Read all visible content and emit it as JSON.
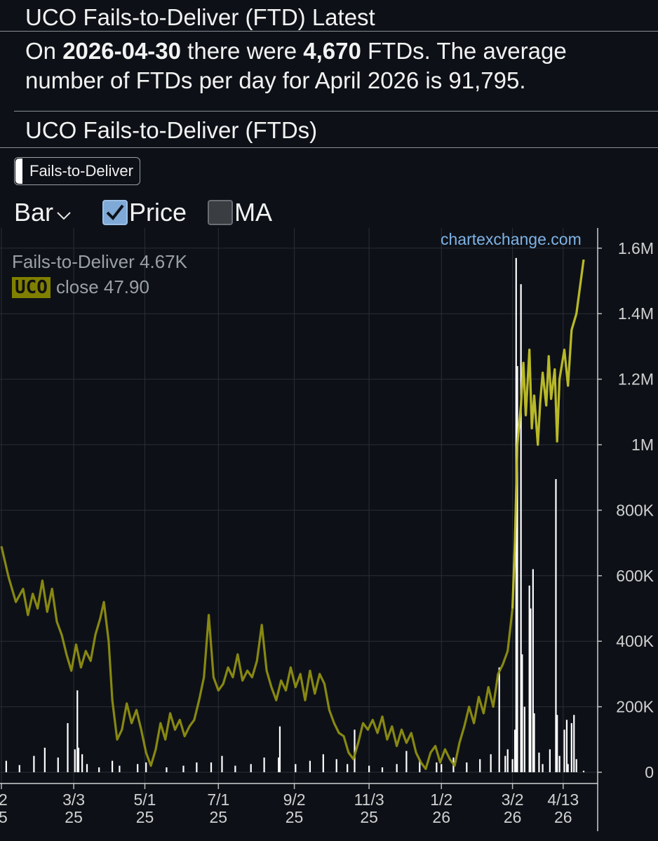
{
  "header": {
    "title": "UCO Fails-to-Deliver (FTD) Latest",
    "summary_prefix": "On ",
    "latest_date": "2026-04-30",
    "summary_mid": " there were ",
    "latest_ftd": "4,670",
    "summary_suffix": " FTDs. The average number of FTDs per day for April 2026 is 91,795.",
    "chart_title": "UCO Fails-to-Deliver (FTDs)"
  },
  "controls": {
    "series_toggle_label": "Fails-to-Deliver",
    "chart_type_label": "Bar",
    "price_label": "Price",
    "price_checked": true,
    "ma_label": "MA",
    "ma_checked": false
  },
  "legend": {
    "ftd_text": "Fails-to-Deliver 4.67K",
    "ticker": "UCO",
    "close_text": "close 47.90"
  },
  "watermark": "chartexchange.com",
  "colors": {
    "background": "#0d1117",
    "grid": "#2a2e35",
    "ftd_bars": "#ffffff",
    "price_line": "#8f8f12",
    "price_line_highlight": "#d8d838",
    "axis_text": "#d0d0d0",
    "watermark": "#7fb3e6"
  },
  "chart_data": {
    "type": "bar",
    "y_axis": {
      "ticks": [
        "1.6M",
        "1.4M",
        "1.2M",
        "1M",
        "800K",
        "600K",
        "400K",
        "200K",
        "0"
      ],
      "tick_values": [
        1600000,
        1400000,
        1200000,
        1000000,
        800000,
        600000,
        400000,
        200000,
        0
      ],
      "ylim": [
        0,
        1680000
      ]
    },
    "x_axis": {
      "tick_labels": [
        {
          "top": "2",
          "bottom": "5"
        },
        {
          "top": "3/3",
          "bottom": "25"
        },
        {
          "top": "5/1",
          "bottom": "25"
        },
        {
          "top": "7/1",
          "bottom": "25"
        },
        {
          "top": "9/2",
          "bottom": "25"
        },
        {
          "top": "11/3",
          "bottom": "25"
        },
        {
          "top": "1/2",
          "bottom": "26"
        },
        {
          "top": "3/2",
          "bottom": "26"
        },
        {
          "top": "4/13",
          "bottom": "26"
        }
      ],
      "tick_dates": [
        "2025-01-02",
        "2025-03-03",
        "2025-05-01",
        "2025-07-01",
        "2025-09-02",
        "2025-11-03",
        "2026-01-02",
        "2026-03-02",
        "2026-04-13"
      ],
      "date_range": [
        "2025-01-02",
        "2026-04-30"
      ]
    },
    "series": [
      {
        "name": "Fails-to-Deliver",
        "kind": "bar",
        "points": [
          [
            "2025-01-06",
            35000
          ],
          [
            "2025-01-17",
            22000
          ],
          [
            "2025-01-29",
            50000
          ],
          [
            "2025-02-07",
            75000
          ],
          [
            "2025-02-18",
            45000
          ],
          [
            "2025-02-26",
            150000
          ],
          [
            "2025-03-04",
            70000
          ],
          [
            "2025-03-06",
            250000
          ],
          [
            "2025-03-07",
            75000
          ],
          [
            "2025-03-10",
            55000
          ],
          [
            "2025-03-14",
            25000
          ],
          [
            "2025-03-24",
            15000
          ],
          [
            "2025-04-04",
            35000
          ],
          [
            "2025-04-10",
            20000
          ],
          [
            "2025-04-25",
            25000
          ],
          [
            "2025-05-02",
            30000
          ],
          [
            "2025-05-19",
            15000
          ],
          [
            "2025-06-02",
            20000
          ],
          [
            "2025-06-13",
            30000
          ],
          [
            "2025-06-25",
            30000
          ],
          [
            "2025-07-04",
            50000
          ],
          [
            "2025-07-15",
            20000
          ],
          [
            "2025-07-28",
            25000
          ],
          [
            "2025-08-08",
            45000
          ],
          [
            "2025-08-20",
            45000
          ],
          [
            "2025-08-21",
            140000
          ],
          [
            "2025-09-03",
            25000
          ],
          [
            "2025-09-15",
            35000
          ],
          [
            "2025-09-26",
            55000
          ],
          [
            "2025-10-07",
            40000
          ],
          [
            "2025-10-16",
            25000
          ],
          [
            "2025-10-22",
            130000
          ],
          [
            "2025-11-03",
            20000
          ],
          [
            "2025-11-14",
            15000
          ],
          [
            "2025-11-26",
            25000
          ],
          [
            "2025-12-04",
            65000
          ],
          [
            "2025-12-15",
            40000
          ],
          [
            "2025-12-29",
            30000
          ],
          [
            "2026-01-02",
            25000
          ],
          [
            "2026-01-12",
            45000
          ],
          [
            "2026-01-23",
            30000
          ],
          [
            "2026-02-03",
            40000
          ],
          [
            "2026-02-12",
            55000
          ],
          [
            "2026-02-19",
            320000
          ],
          [
            "2026-02-24",
            50000
          ],
          [
            "2026-02-26",
            70000
          ],
          [
            "2026-03-02",
            40000
          ],
          [
            "2026-03-04",
            130000
          ],
          [
            "2026-03-05",
            1570000
          ],
          [
            "2026-03-06",
            1240000
          ],
          [
            "2026-03-09",
            1490000
          ],
          [
            "2026-03-10",
            360000
          ],
          [
            "2026-03-12",
            200000
          ],
          [
            "2026-03-16",
            570000
          ],
          [
            "2026-03-17",
            500000
          ],
          [
            "2026-03-19",
            620000
          ],
          [
            "2026-03-20",
            180000
          ],
          [
            "2026-03-24",
            60000
          ],
          [
            "2026-03-27",
            25000
          ],
          [
            "2026-04-02",
            70000
          ],
          [
            "2026-04-07",
            895000
          ],
          [
            "2026-04-08",
            175000
          ],
          [
            "2026-04-10",
            50000
          ],
          [
            "2026-04-14",
            130000
          ],
          [
            "2026-04-16",
            160000
          ],
          [
            "2026-04-17",
            25000
          ],
          [
            "2026-04-20",
            150000
          ],
          [
            "2026-04-22",
            175000
          ],
          [
            "2026-04-24",
            40000
          ],
          [
            "2026-04-30",
            4670
          ]
        ]
      },
      {
        "name": "UCO",
        "kind": "line",
        "last_close": 47.9,
        "points": [
          [
            "2025-01-02",
            690000
          ],
          [
            "2025-01-08",
            595000
          ],
          [
            "2025-01-14",
            520000
          ],
          [
            "2025-01-20",
            560000
          ],
          [
            "2025-01-24",
            480000
          ],
          [
            "2025-01-28",
            545000
          ],
          [
            "2025-02-01",
            500000
          ],
          [
            "2025-02-05",
            585000
          ],
          [
            "2025-02-09",
            490000
          ],
          [
            "2025-02-13",
            560000
          ],
          [
            "2025-02-17",
            460000
          ],
          [
            "2025-02-21",
            420000
          ],
          [
            "2025-02-25",
            360000
          ],
          [
            "2025-03-01",
            310000
          ],
          [
            "2025-03-05",
            390000
          ],
          [
            "2025-03-09",
            320000
          ],
          [
            "2025-03-13",
            370000
          ],
          [
            "2025-03-17",
            340000
          ],
          [
            "2025-03-21",
            420000
          ],
          [
            "2025-03-25",
            470000
          ],
          [
            "2025-03-28",
            520000
          ],
          [
            "2025-04-01",
            400000
          ],
          [
            "2025-04-04",
            220000
          ],
          [
            "2025-04-08",
            100000
          ],
          [
            "2025-04-12",
            130000
          ],
          [
            "2025-04-16",
            210000
          ],
          [
            "2025-04-20",
            150000
          ],
          [
            "2025-04-24",
            190000
          ],
          [
            "2025-04-28",
            130000
          ],
          [
            "2025-05-02",
            60000
          ],
          [
            "2025-05-06",
            20000
          ],
          [
            "2025-05-10",
            70000
          ],
          [
            "2025-05-14",
            150000
          ],
          [
            "2025-05-18",
            100000
          ],
          [
            "2025-05-22",
            180000
          ],
          [
            "2025-05-26",
            130000
          ],
          [
            "2025-05-30",
            160000
          ],
          [
            "2025-06-03",
            110000
          ],
          [
            "2025-06-07",
            140000
          ],
          [
            "2025-06-11",
            160000
          ],
          [
            "2025-06-15",
            220000
          ],
          [
            "2025-06-19",
            290000
          ],
          [
            "2025-06-23",
            480000
          ],
          [
            "2025-06-27",
            290000
          ],
          [
            "2025-07-01",
            250000
          ],
          [
            "2025-07-05",
            270000
          ],
          [
            "2025-07-09",
            320000
          ],
          [
            "2025-07-13",
            290000
          ],
          [
            "2025-07-17",
            360000
          ],
          [
            "2025-07-21",
            280000
          ],
          [
            "2025-07-25",
            310000
          ],
          [
            "2025-07-29",
            290000
          ],
          [
            "2025-08-02",
            340000
          ],
          [
            "2025-08-06",
            450000
          ],
          [
            "2025-08-10",
            310000
          ],
          [
            "2025-08-14",
            260000
          ],
          [
            "2025-08-18",
            220000
          ],
          [
            "2025-08-22",
            280000
          ],
          [
            "2025-08-26",
            250000
          ],
          [
            "2025-08-30",
            320000
          ],
          [
            "2025-09-03",
            260000
          ],
          [
            "2025-09-07",
            300000
          ],
          [
            "2025-09-11",
            220000
          ],
          [
            "2025-09-15",
            310000
          ],
          [
            "2025-09-19",
            240000
          ],
          [
            "2025-09-23",
            300000
          ],
          [
            "2025-09-27",
            270000
          ],
          [
            "2025-10-01",
            190000
          ],
          [
            "2025-10-05",
            150000
          ],
          [
            "2025-10-09",
            120000
          ],
          [
            "2025-10-13",
            110000
          ],
          [
            "2025-10-17",
            60000
          ],
          [
            "2025-10-21",
            40000
          ],
          [
            "2025-10-25",
            90000
          ],
          [
            "2025-10-29",
            150000
          ],
          [
            "2025-11-02",
            130000
          ],
          [
            "2025-11-06",
            160000
          ],
          [
            "2025-11-10",
            120000
          ],
          [
            "2025-11-14",
            170000
          ],
          [
            "2025-11-18",
            100000
          ],
          [
            "2025-11-22",
            140000
          ],
          [
            "2025-11-26",
            80000
          ],
          [
            "2025-11-30",
            130000
          ],
          [
            "2025-12-04",
            90000
          ],
          [
            "2025-12-08",
            120000
          ],
          [
            "2025-12-12",
            60000
          ],
          [
            "2025-12-16",
            30000
          ],
          [
            "2025-12-20",
            10000
          ],
          [
            "2025-12-24",
            60000
          ],
          [
            "2025-12-28",
            80000
          ],
          [
            "2026-01-01",
            30000
          ],
          [
            "2026-01-05",
            70000
          ],
          [
            "2026-01-09",
            40000
          ],
          [
            "2026-01-13",
            20000
          ],
          [
            "2026-01-17",
            90000
          ],
          [
            "2026-01-21",
            140000
          ],
          [
            "2026-01-25",
            200000
          ],
          [
            "2026-01-29",
            150000
          ],
          [
            "2026-02-02",
            230000
          ],
          [
            "2026-02-06",
            180000
          ],
          [
            "2026-02-10",
            260000
          ],
          [
            "2026-02-14",
            200000
          ],
          [
            "2026-02-18",
            300000
          ],
          [
            "2026-02-22",
            330000
          ],
          [
            "2026-02-26",
            370000
          ],
          [
            "2026-03-02",
            500000
          ],
          [
            "2026-03-04",
            700000
          ],
          [
            "2026-03-06",
            1000000
          ],
          [
            "2026-03-09",
            1120000
          ],
          [
            "2026-03-11",
            1250000
          ],
          [
            "2026-03-13",
            1090000
          ],
          [
            "2026-03-16",
            1290000
          ],
          [
            "2026-03-18",
            1050000
          ],
          [
            "2026-03-20",
            1150000
          ],
          [
            "2026-03-23",
            1000000
          ],
          [
            "2026-03-25",
            1130000
          ],
          [
            "2026-03-27",
            1220000
          ],
          [
            "2026-03-30",
            1120000
          ],
          [
            "2026-04-01",
            1270000
          ],
          [
            "2026-04-03",
            1140000
          ],
          [
            "2026-04-06",
            1230000
          ],
          [
            "2026-04-08",
            1010000
          ],
          [
            "2026-04-10",
            1200000
          ],
          [
            "2026-04-14",
            1290000
          ],
          [
            "2026-04-17",
            1180000
          ],
          [
            "2026-04-20",
            1350000
          ],
          [
            "2026-04-24",
            1400000
          ],
          [
            "2026-04-30",
            1565000
          ]
        ]
      }
    ],
    "grid": true
  }
}
